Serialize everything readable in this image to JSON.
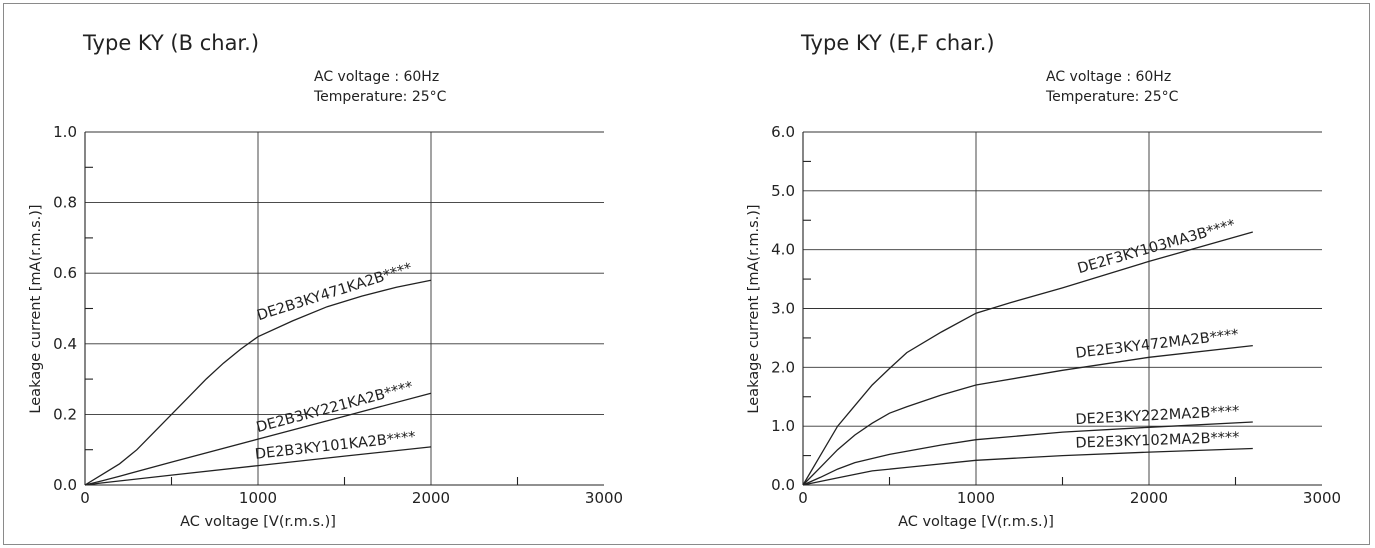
{
  "chart_data": [
    {
      "type": "line",
      "title": "Type KY (B char.)",
      "conditions": [
        "AC voltage   : 60Hz",
        "Temperature: 25°C"
      ],
      "xlabel": "AC voltage [V(r.m.s.)]",
      "ylabel": "Leakage current [mA(r.m.s.)]",
      "xlim": [
        0,
        3000
      ],
      "ylim": [
        0,
        1.0
      ],
      "xticks": [
        0,
        1000,
        2000,
        3000
      ],
      "xtick_labels": [
        "0",
        "1000",
        "2000",
        "3000"
      ],
      "yticks": [
        0,
        0.2,
        0.4,
        0.6,
        0.8,
        1.0
      ],
      "ytick_labels": [
        "0.0",
        "0.2",
        "0.4",
        "0.6",
        "0.8",
        "1.0"
      ],
      "grid": true,
      "series": [
        {
          "name": "DE2B3KY471KA2B****",
          "x": [
            0,
            100,
            200,
            300,
            400,
            500,
            600,
            700,
            800,
            900,
            1000,
            1200,
            1400,
            1600,
            1800,
            2000
          ],
          "y": [
            0,
            0.03,
            0.06,
            0.1,
            0.15,
            0.2,
            0.25,
            0.3,
            0.345,
            0.385,
            0.42,
            0.465,
            0.505,
            0.535,
            0.56,
            0.58
          ]
        },
        {
          "name": "DE2B3KY221KA2B****",
          "x": [
            0,
            100,
            200,
            500,
            1000,
            1500,
            2000
          ],
          "y": [
            0,
            0.012,
            0.025,
            0.065,
            0.13,
            0.195,
            0.26
          ]
        },
        {
          "name": "DE2B3KY101KA2B****",
          "x": [
            0,
            100,
            500,
            1000,
            1500,
            2000
          ],
          "y": [
            0,
            0.006,
            0.028,
            0.055,
            0.082,
            0.108
          ]
        }
      ]
    },
    {
      "type": "line",
      "title": "Type KY (E,F char.)",
      "conditions": [
        "AC voltage   : 60Hz",
        "Temperature: 25°C"
      ],
      "xlabel": "AC voltage [V(r.m.s.)]",
      "ylabel": "Leakage current [mA(r.m.s.)]",
      "xlim": [
        0,
        3000
      ],
      "ylim": [
        0,
        6.0
      ],
      "xticks": [
        0,
        1000,
        2000,
        3000
      ],
      "xtick_labels": [
        "0",
        "1000",
        "2000",
        "3000"
      ],
      "yticks": [
        0,
        1,
        2,
        3,
        4,
        5,
        6
      ],
      "ytick_labels": [
        "0.0",
        "1.0",
        "2.0",
        "3.0",
        "4.0",
        "5.0",
        "6.0"
      ],
      "grid": true,
      "series": [
        {
          "name": "DE2F3KY103MA3B****",
          "x": [
            0,
            100,
            200,
            300,
            400,
            500,
            600,
            800,
            1000,
            1200,
            1500,
            2000,
            2600
          ],
          "y": [
            0,
            0.5,
            1.0,
            1.35,
            1.7,
            1.98,
            2.25,
            2.6,
            2.92,
            3.1,
            3.35,
            3.8,
            4.3
          ]
        },
        {
          "name": "DE2E3KY472MA2B****",
          "x": [
            0,
            100,
            200,
            300,
            400,
            500,
            600,
            800,
            1000,
            1500,
            2000,
            2600
          ],
          "y": [
            0,
            0.3,
            0.6,
            0.85,
            1.05,
            1.22,
            1.33,
            1.53,
            1.7,
            1.95,
            2.17,
            2.37
          ]
        },
        {
          "name": "DE2E3KY222MA2B****",
          "x": [
            0,
            100,
            200,
            300,
            500,
            800,
            1000,
            1500,
            2000,
            2600
          ],
          "y": [
            0,
            0.13,
            0.27,
            0.38,
            0.52,
            0.68,
            0.77,
            0.9,
            0.98,
            1.07
          ]
        },
        {
          "name": "DE2E3KY102MA2B****",
          "x": [
            0,
            200,
            400,
            600,
            1000,
            1500,
            2000,
            2600
          ],
          "y": [
            0,
            0.12,
            0.24,
            0.3,
            0.42,
            0.5,
            0.56,
            0.62
          ]
        }
      ]
    }
  ]
}
